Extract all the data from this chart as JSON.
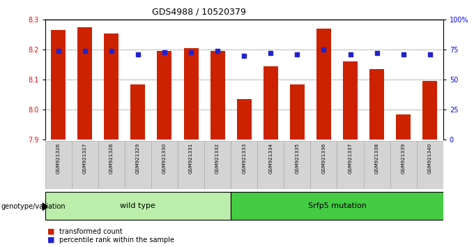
{
  "title": "GDS4988 / 10520379",
  "samples": [
    "GSM921326",
    "GSM921327",
    "GSM921328",
    "GSM921329",
    "GSM921330",
    "GSM921331",
    "GSM921332",
    "GSM921333",
    "GSM921334",
    "GSM921335",
    "GSM921336",
    "GSM921337",
    "GSM921338",
    "GSM921339",
    "GSM921340"
  ],
  "bar_values": [
    8.265,
    8.275,
    8.255,
    8.085,
    8.195,
    8.205,
    8.195,
    8.035,
    8.145,
    8.085,
    8.27,
    8.16,
    8.135,
    7.985,
    8.095
  ],
  "dot_values_pct": [
    74,
    74,
    74,
    71,
    73,
    73,
    74,
    70,
    72,
    71,
    75,
    71,
    72,
    71,
    71
  ],
  "bar_color": "#cc2200",
  "dot_color": "#2222cc",
  "ylim_left": [
    7.9,
    8.3
  ],
  "ylim_right": [
    0,
    100
  ],
  "yticks_left": [
    7.9,
    8.0,
    8.1,
    8.2,
    8.3
  ],
  "yticks_right": [
    0,
    25,
    50,
    75,
    100
  ],
  "ytick_labels_right": [
    "0",
    "25",
    "50",
    "75",
    "100%"
  ],
  "grid_lines": [
    8.0,
    8.1,
    8.2
  ],
  "groups": [
    {
      "label": "wild type",
      "start": 0,
      "end": 7,
      "color": "#bbeeaa"
    },
    {
      "label": "Srfp5 mutation",
      "start": 7,
      "end": 15,
      "color": "#44cc44"
    }
  ],
  "genotype_label": "genotype/variation",
  "legend_bar_label": "transformed count",
  "legend_dot_label": "percentile rank within the sample",
  "background_color": "#ffffff",
  "tick_area_color": "#c8c8c8"
}
